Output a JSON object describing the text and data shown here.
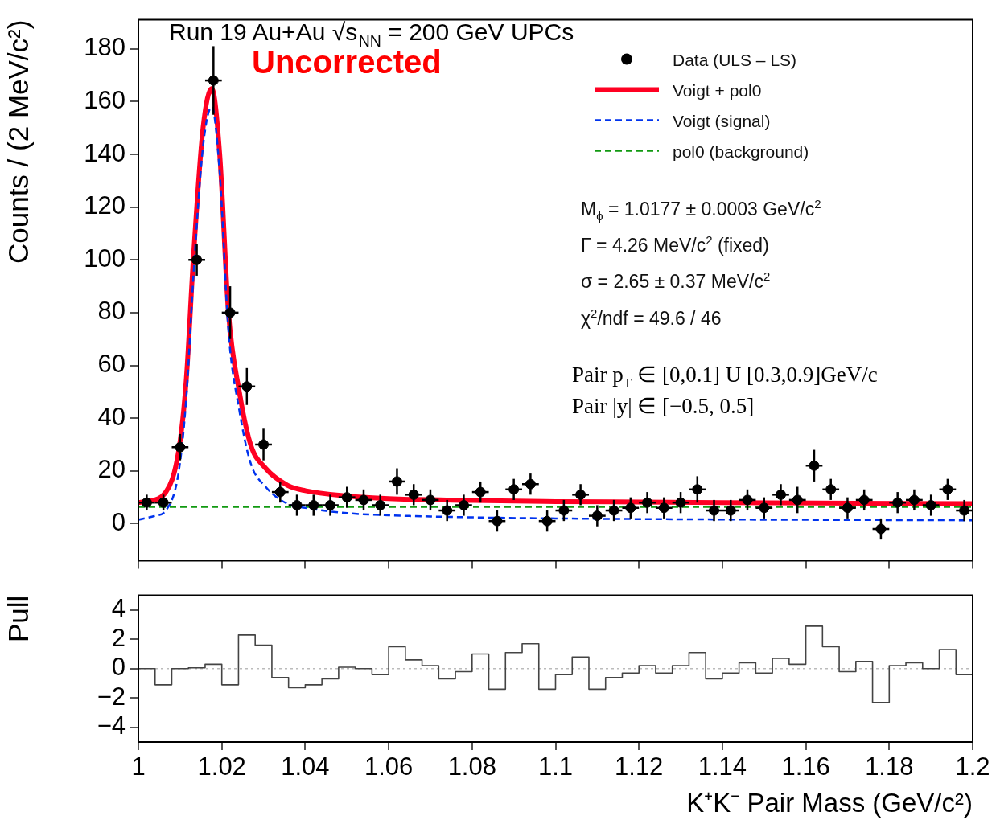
{
  "chart_data": [
    {
      "type": "scatter",
      "title": "Run 19 Au+Au √s$_{NN}$ = 200 GeV UPCs",
      "ylabel": "Counts / (2 MeV/c²)",
      "annotations": [
        "Uncorrected",
        "M$_{ϕ}$ = 1.0177 ± 0.0003 GeV/c$^{2}$",
        "Γ = 4.26 MeV/c$^{2}$ (fixed)",
        "σ = 2.65 ± 0.37 MeV/c$^{2}$",
        "χ$^{2}$/ndf = 49.6 / 46",
        "Pair p$_{T}$ ∈ [0,0.1] U [0.3,0.9]GeV/c",
        "Pair |y| ∈ [−0.5, 0.5]"
      ],
      "xlim": [
        1,
        1.2
      ],
      "xticks": [
        1,
        1.02,
        1.04,
        1.06,
        1.08,
        1.1,
        1.12,
        1.14,
        1.16,
        1.18,
        1.2
      ],
      "ylim": [
        -14,
        191
      ],
      "yticks": [
        0,
        20,
        40,
        60,
        80,
        100,
        120,
        140,
        160,
        180
      ],
      "tick_labels": "y",
      "legend": "top right",
      "series": [
        {
          "name": "Data (ULS – LS)",
          "type": "scatter",
          "marker": "circle",
          "color": "#000000",
          "x": [
            1.002,
            1.006,
            1.01,
            1.014,
            1.018,
            1.022,
            1.026,
            1.03,
            1.034,
            1.038,
            1.042,
            1.046,
            1.05,
            1.054,
            1.058,
            1.062,
            1.066,
            1.07,
            1.074,
            1.078,
            1.082,
            1.086,
            1.09,
            1.094,
            1.098,
            1.102,
            1.106,
            1.11,
            1.114,
            1.118,
            1.122,
            1.126,
            1.13,
            1.134,
            1.138,
            1.142,
            1.146,
            1.15,
            1.154,
            1.158,
            1.162,
            1.166,
            1.17,
            1.174,
            1.178,
            1.182,
            1.186,
            1.19,
            1.194,
            1.198
          ],
          "values": [
            8,
            8,
            29,
            100,
            168,
            80,
            52,
            30,
            12,
            7,
            7,
            7,
            10,
            9,
            7,
            16,
            11,
            9,
            5,
            7,
            12,
            1,
            13,
            15,
            1,
            5,
            11,
            3,
            5,
            6,
            8,
            6,
            8,
            13,
            5,
            5,
            9,
            6,
            11,
            9,
            22,
            13,
            6,
            9,
            -2,
            8,
            9,
            7,
            13,
            5
          ],
          "errors": [
            3,
            3,
            5,
            6,
            13,
            10,
            7,
            6,
            4,
            4,
            4,
            4,
            4,
            4,
            4,
            5,
            4,
            4,
            4,
            4,
            4,
            4,
            4,
            4,
            4,
            4,
            4,
            4,
            4,
            4,
            4,
            4,
            4,
            5,
            4,
            4,
            4,
            4,
            4,
            5,
            6,
            4,
            4,
            4,
            4,
            4,
            4,
            4,
            4,
            4
          ],
          "xerrors": [
            0.002,
            0.002,
            0.002,
            0.002,
            0.002,
            0.002,
            0.002,
            0.002,
            0.002,
            0.002,
            0.002,
            0.002,
            0.002,
            0.002,
            0.002,
            0.002,
            0.002,
            0.002,
            0.002,
            0.002,
            0.002,
            0.002,
            0.002,
            0.002,
            0.002,
            0.002,
            0.002,
            0.002,
            0.002,
            0.002,
            0.002,
            0.002,
            0.002,
            0.002,
            0.002,
            0.002,
            0.002,
            0.002,
            0.002,
            0.002,
            0.002,
            0.002,
            0.002,
            0.002,
            0.002,
            0.002,
            0.002,
            0.002,
            0.002,
            0.002
          ]
        },
        {
          "name": "Voigt + pol0",
          "type": "line",
          "line_style": "solid",
          "color": "#ff0022",
          "x": [
            1,
            1.002,
            1.0066,
            1.0097,
            1.0115,
            1.0132,
            1.0155,
            1.0176,
            1.0195,
            1.0216,
            1.0242,
            1.0269,
            1.0305,
            1.0358,
            1.04,
            1.05,
            1.06,
            1.08,
            1.1,
            1.14,
            1.2
          ],
          "values": [
            8,
            8.5,
            12,
            28,
            55,
            101,
            150,
            165,
            140,
            80,
            50,
            30,
            21,
            14.5,
            12.5,
            10.5,
            9.5,
            8.8,
            8.4,
            8,
            7.6
          ]
        },
        {
          "name": "Voigt (signal)",
          "type": "line",
          "line_style": "dashed",
          "color": "#0033ee",
          "x": [
            1,
            1.004,
            1.0066,
            1.0097,
            1.0115,
            1.0132,
            1.0155,
            1.0176,
            1.0195,
            1.0216,
            1.0242,
            1.0269,
            1.0305,
            1.0358,
            1.04,
            1.05,
            1.06,
            1.08,
            1.1,
            1.14,
            1.2
          ],
          "values": [
            1.5,
            3,
            5,
            20,
            48,
            94,
            143,
            158,
            133,
            73,
            43,
            23,
            14,
            7.5,
            6,
            4,
            3.2,
            2.4,
            2,
            1.6,
            1.3
          ]
        },
        {
          "name": "pol0 (background)",
          "type": "line",
          "line_style": "dashed",
          "color": "#119911",
          "x": [
            1,
            1.2
          ],
          "values": [
            6.4,
            6.4
          ]
        }
      ]
    },
    {
      "type": "histogram",
      "xlabel": "K⁺K⁻ Pair Mass (GeV/c²)",
      "ylabel": "Pull",
      "color": "#444444",
      "line_style": "solid",
      "xlim": [
        1,
        1.2
      ],
      "xticks": [
        1,
        1.02,
        1.04,
        1.06,
        1.08,
        1.1,
        1.12,
        1.14,
        1.16,
        1.18,
        1.2
      ],
      "ylim": [
        -5,
        5
      ],
      "yticks": [
        {
          "value": -4,
          "label": "−4"
        },
        {
          "value": -2,
          "label": "−2"
        },
        0,
        2,
        4
      ],
      "ref_lines": [
        {
          "axis": "y",
          "value": 0,
          "color": "#bbbbbb",
          "line_style": "dotted"
        }
      ],
      "bins": [
        1,
        1.004,
        1.008,
        1.012,
        1.016,
        1.02,
        1.024,
        1.028,
        1.032,
        1.036,
        1.04,
        1.044,
        1.048,
        1.052,
        1.056,
        1.06,
        1.064,
        1.068,
        1.072,
        1.076,
        1.08,
        1.084,
        1.088,
        1.092,
        1.096,
        1.1,
        1.104,
        1.108,
        1.112,
        1.116,
        1.12,
        1.124,
        1.128,
        1.132,
        1.136,
        1.14,
        1.144,
        1.148,
        1.152,
        1.156,
        1.16,
        1.164,
        1.168,
        1.172,
        1.176,
        1.18,
        1.184,
        1.188,
        1.192,
        1.196,
        1.2
      ],
      "values": [
        0,
        -1.1,
        0,
        0.06,
        0.3,
        -1.1,
        2.3,
        1.6,
        -0.6,
        -1.3,
        -1.1,
        -0.7,
        0.1,
        0,
        -0.4,
        1.5,
        0.6,
        0.2,
        -0.7,
        -0.2,
        1,
        -1.4,
        1.1,
        1.7,
        -1.4,
        -0.4,
        0.8,
        -1.4,
        -0.6,
        -0.3,
        0.2,
        -0.3,
        0.2,
        1.1,
        -0.7,
        -0.3,
        0.4,
        -0.3,
        0.7,
        0.3,
        2.9,
        1.5,
        -0.2,
        0.5,
        -2.3,
        0.2,
        0.4,
        0,
        1.3,
        -0.4
      ]
    }
  ]
}
